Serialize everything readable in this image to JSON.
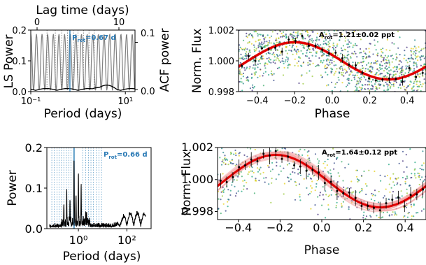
{
  "colors": {
    "ls_line": "#000000",
    "acf_line": "#808080",
    "peak_marker": "#1f77b4",
    "model": "#e00000",
    "model_band": "#f4a0a0",
    "binned": "#000000",
    "scatter_palette": [
      "#3b4f8c",
      "#2b8a8c",
      "#3fae6d",
      "#9bc93d",
      "#e6d11f",
      "#46337e",
      "#24a884"
    ]
  },
  "chart_data": [
    {
      "id": "tl_periodogram",
      "type": "line",
      "xscale": "log",
      "xlim": [
        0.1,
        16
      ],
      "ylim": [
        0,
        0.2
      ],
      "xlabel": "Period (days)",
      "ylabel": "LS Power",
      "top_xlabel": "Lag time (days)",
      "right_ylabel": "ACF power",
      "xticks": [
        "10⁻¹",
        "10¹"
      ],
      "yticks": [
        "0.0",
        "0.1",
        "0.2"
      ],
      "top_xticks": [
        "0",
        "10"
      ],
      "right_yticks": [
        "0.0",
        "0.1"
      ],
      "annotation_prefix": "P",
      "annotation_sub": "rot",
      "annotation_value": "=0.67 d",
      "peak_period": 0.67,
      "series": [
        {
          "values_x": [
            0.1,
            0.2,
            0.4,
            0.67,
            1.0,
            2.0,
            4.0,
            8.0,
            12.0,
            16.0
          ],
          "values_y": [
            0.005,
            0.01,
            0.015,
            0.2,
            0.02,
            0.01,
            0.005,
            0.008,
            0.012,
            0.006
          ]
        }
      ]
    },
    {
      "id": "tr_phase",
      "type": "scatter",
      "xlim": [
        -0.5,
        0.5
      ],
      "ylim": [
        0.998,
        1.002
      ],
      "xlabel": "Phase",
      "ylabel": "Norm. Flux",
      "xticks": [
        "−0.4",
        "−0.2",
        "0.0",
        "0.2",
        "0.4"
      ],
      "yticks": [
        "0.998",
        "1.000",
        "1.002"
      ],
      "annotation_prefix": "A",
      "annotation_sub": "rot",
      "annotation_value": "=1.21±0.02 ppt",
      "amplitude_ppt": 1.21,
      "peak_phase": -0.2
    },
    {
      "id": "bl_periodogram",
      "type": "line",
      "xscale": "log",
      "xlim": [
        0.05,
        1000
      ],
      "ylim": [
        0,
        0.2
      ],
      "xlabel": "Period (days)",
      "ylabel": "Power",
      "xticks": [
        "10⁰",
        "10²"
      ],
      "yticks": [
        "0.0",
        "0.1",
        "0.2"
      ],
      "annotation_prefix": "P",
      "annotation_sub": "rot",
      "annotation_value": "=0.66 d",
      "peak_period": 0.66,
      "series": [
        {
          "values_x": [
            0.05,
            0.1,
            0.3,
            0.66,
            1.0,
            3.0,
            10.0,
            50.0,
            200.0,
            1000.0
          ],
          "values_y": [
            0.01,
            0.03,
            0.06,
            0.2,
            0.07,
            0.04,
            0.02,
            0.015,
            0.04,
            0.01
          ]
        }
      ]
    },
    {
      "id": "br_phase",
      "type": "scatter",
      "xlim": [
        -0.5,
        0.5
      ],
      "ylim": [
        0.9975,
        1.002
      ],
      "xlabel": "Phase",
      "ylabel": "Norm. Flux",
      "xticks": [
        "−0.4",
        "−0.2",
        "0.0",
        "0.2",
        "0.4"
      ],
      "yticks": [
        "0.998",
        "1.000",
        "1.002"
      ],
      "annotation_prefix": "A",
      "annotation_sub": "rot",
      "annotation_value": "=1.64±0.12 ppt",
      "amplitude_ppt": 1.64,
      "peak_phase": -0.22
    }
  ]
}
